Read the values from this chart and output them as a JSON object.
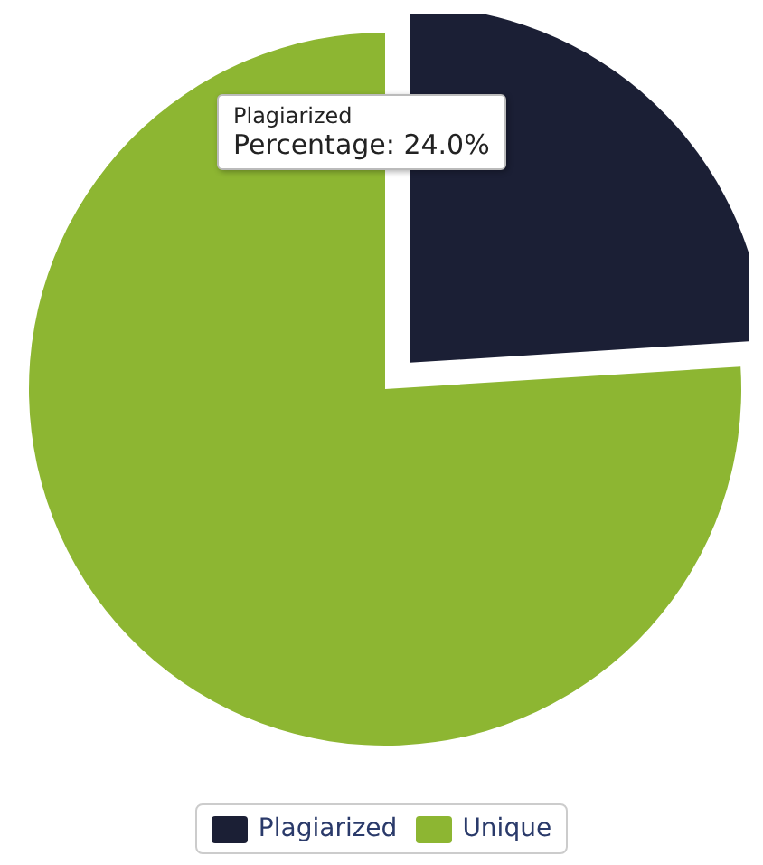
{
  "chart_data": {
    "type": "pie",
    "categories": [
      "Plagiarized",
      "Unique"
    ],
    "values": [
      24.0,
      76.0
    ],
    "colors": [
      "#1b1f35",
      "#8db632"
    ],
    "legend": "bottom",
    "annotations": [
      "Plagiarized",
      "Percentage: 24.0%"
    ]
  }
}
